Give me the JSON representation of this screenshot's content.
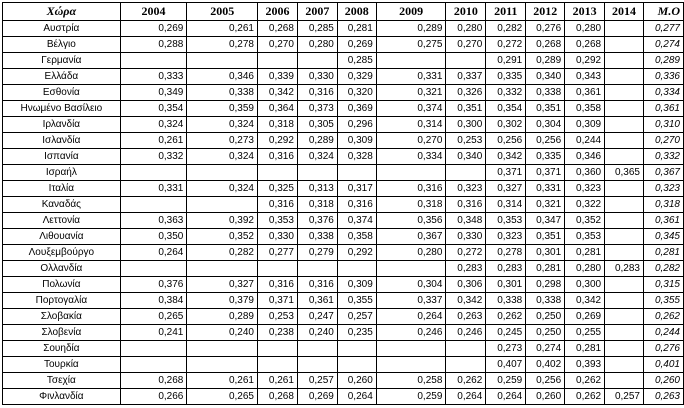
{
  "table": {
    "headers": [
      "Χώρα",
      "2004",
      "2005",
      "2006",
      "2007",
      "2008",
      "2009",
      "2010",
      "2011",
      "2012",
      "2013",
      "2014",
      "Μ.Ο"
    ],
    "rows": [
      {
        "country": "Αυστρία",
        "values": [
          "0,269",
          "0,261",
          "0,268",
          "0,285",
          "0,281",
          "0,289",
          "0,280",
          "0,282",
          "0,276",
          "0,280",
          "",
          "0,277"
        ]
      },
      {
        "country": "Βέλγιο",
        "values": [
          "0,288",
          "0,278",
          "0,270",
          "0,280",
          "0,269",
          "0,275",
          "0,270",
          "0,272",
          "0,268",
          "0,268",
          "",
          "0,274"
        ]
      },
      {
        "country": "Γερμανία",
        "values": [
          "",
          "",
          "",
          "",
          "0,285",
          "",
          "",
          "0,291",
          "0,289",
          "0,292",
          "",
          "0,289"
        ]
      },
      {
        "country": "Ελλάδα",
        "values": [
          "0,333",
          "0,346",
          "0,339",
          "0,330",
          "0,329",
          "0,331",
          "0,337",
          "0,335",
          "0,340",
          "0,343",
          "",
          "0,336"
        ]
      },
      {
        "country": "Εσθονία",
        "values": [
          "0,349",
          "0,338",
          "0,342",
          "0,316",
          "0,320",
          "0,321",
          "0,326",
          "0,332",
          "0,338",
          "0,361",
          "",
          "0,334"
        ]
      },
      {
        "country": "Ηνωμένο Βασίλειο",
        "values": [
          "0,354",
          "0,359",
          "0,364",
          "0,373",
          "0,369",
          "0,374",
          "0,351",
          "0,354",
          "0,351",
          "0,358",
          "",
          "0,361"
        ]
      },
      {
        "country": "Ιρλανδία",
        "values": [
          "0,324",
          "0,324",
          "0,318",
          "0,305",
          "0,296",
          "0,314",
          "0,300",
          "0,302",
          "0,304",
          "0,309",
          "",
          "0,310"
        ]
      },
      {
        "country": "Ισλανδία",
        "values": [
          "0,261",
          "0,273",
          "0,292",
          "0,289",
          "0,309",
          "0,270",
          "0,253",
          "0,256",
          "0,256",
          "0,244",
          "",
          "0,270"
        ]
      },
      {
        "country": "Ισπανία",
        "values": [
          "0,332",
          "0,324",
          "0,316",
          "0,324",
          "0,328",
          "0,334",
          "0,340",
          "0,342",
          "0,335",
          "0,346",
          "",
          "0,332"
        ]
      },
      {
        "country": "Ισραήλ",
        "values": [
          "",
          "",
          "",
          "",
          "",
          "",
          "",
          "0,371",
          "0,371",
          "0,360",
          "0,365",
          "0,367"
        ]
      },
      {
        "country": "Ιταλία",
        "values": [
          "0,331",
          "0,324",
          "0,325",
          "0,313",
          "0,317",
          "0,316",
          "0,323",
          "0,327",
          "0,331",
          "0,323",
          "",
          "0,323"
        ]
      },
      {
        "country": "Καναδάς",
        "values": [
          "",
          "",
          "0,316",
          "0,318",
          "0,316",
          "0,318",
          "0,316",
          "0,314",
          "0,321",
          "0,322",
          "",
          "0,318"
        ]
      },
      {
        "country": "Λεττονία",
        "values": [
          "0,363",
          "0,392",
          "0,353",
          "0,376",
          "0,374",
          "0,356",
          "0,348",
          "0,353",
          "0,347",
          "0,352",
          "",
          "0,361"
        ]
      },
      {
        "country": "Λιθουανία",
        "values": [
          "0,350",
          "0,352",
          "0,330",
          "0,338",
          "0,358",
          "0,367",
          "0,330",
          "0,323",
          "0,351",
          "0,353",
          "",
          "0,345"
        ]
      },
      {
        "country": "Λουξεμβούργο",
        "values": [
          "0,264",
          "0,282",
          "0,277",
          "0,279",
          "0,292",
          "0,280",
          "0,272",
          "0,278",
          "0,301",
          "0,281",
          "",
          "0,281"
        ]
      },
      {
        "country": "Ολλανδία",
        "values": [
          "",
          "",
          "",
          "",
          "",
          "",
          "0,283",
          "0,283",
          "0,281",
          "0,280",
          "0,283",
          "0,282"
        ]
      },
      {
        "country": "Πολωνία",
        "values": [
          "0,376",
          "0,327",
          "0,316",
          "0,316",
          "0,309",
          "0,304",
          "0,306",
          "0,301",
          "0,298",
          "0,300",
          "",
          "0,315"
        ]
      },
      {
        "country": "Πορτογαλία",
        "values": [
          "0,384",
          "0,379",
          "0,371",
          "0,361",
          "0,355",
          "0,337",
          "0,342",
          "0,338",
          "0,338",
          "0,342",
          "",
          "0,355"
        ]
      },
      {
        "country": "Σλοβακία",
        "values": [
          "0,265",
          "0,289",
          "0,253",
          "0,247",
          "0,257",
          "0,264",
          "0,263",
          "0,262",
          "0,250",
          "0,269",
          "",
          "0,262"
        ]
      },
      {
        "country": "Σλοβενία",
        "values": [
          "0,241",
          "0,240",
          "0,238",
          "0,240",
          "0,235",
          "0,246",
          "0,246",
          "0,245",
          "0,250",
          "0,255",
          "",
          "0,244"
        ]
      },
      {
        "country": "Σουηδία",
        "values": [
          "",
          "",
          "",
          "",
          "",
          "",
          "",
          "0,273",
          "0,274",
          "0,281",
          "",
          "0,276"
        ]
      },
      {
        "country": "Τουρκία",
        "values": [
          "",
          "",
          "",
          "",
          "",
          "",
          "",
          "0,407",
          "0,402",
          "0,393",
          "",
          "0,401"
        ]
      },
      {
        "country": "Τσεχία",
        "values": [
          "0,268",
          "0,261",
          "0,261",
          "0,257",
          "0,260",
          "0,258",
          "0,262",
          "0,259",
          "0,256",
          "0,262",
          "",
          "0,260"
        ]
      },
      {
        "country": "Φινλανδία",
        "values": [
          "0,266",
          "0,265",
          "0,268",
          "0,269",
          "0,264",
          "0,259",
          "0,264",
          "0,264",
          "0,260",
          "0,262",
          "0,257",
          "0,263"
        ]
      }
    ]
  }
}
